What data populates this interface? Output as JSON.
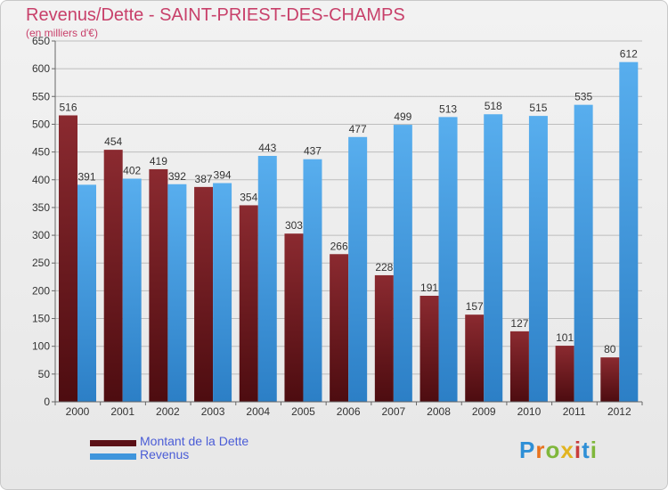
{
  "title": "Revenus/Dette - SAINT-PRIEST-DES-CHAMPS",
  "subtitle": "(en milliers d'€)",
  "brand": "Proxiti",
  "chart_data": {
    "type": "bar",
    "title": "Revenus/Dette - SAINT-PRIEST-DES-CHAMPS",
    "subtitle": "(en milliers d'€)",
    "categories": [
      "2000",
      "2001",
      "2002",
      "2003",
      "2004",
      "2005",
      "2006",
      "2007",
      "2008",
      "2009",
      "2010",
      "2011",
      "2012"
    ],
    "series": [
      {
        "name": "Montant de la Dette",
        "color": "#7a1f26",
        "values": [
          516,
          454,
          419,
          387,
          354,
          303,
          266,
          228,
          191,
          157,
          127,
          101,
          80
        ]
      },
      {
        "name": "Revenus",
        "color": "#3f95dc",
        "values": [
          391,
          402,
          392,
          394,
          443,
          437,
          477,
          499,
          513,
          518,
          515,
          535,
          612
        ]
      }
    ],
    "ylim": [
      0,
      650
    ],
    "yticks": [
      0,
      50,
      100,
      150,
      200,
      250,
      300,
      350,
      400,
      450,
      500,
      550,
      600,
      650
    ],
    "grid": true,
    "legend": "bottom-left"
  }
}
